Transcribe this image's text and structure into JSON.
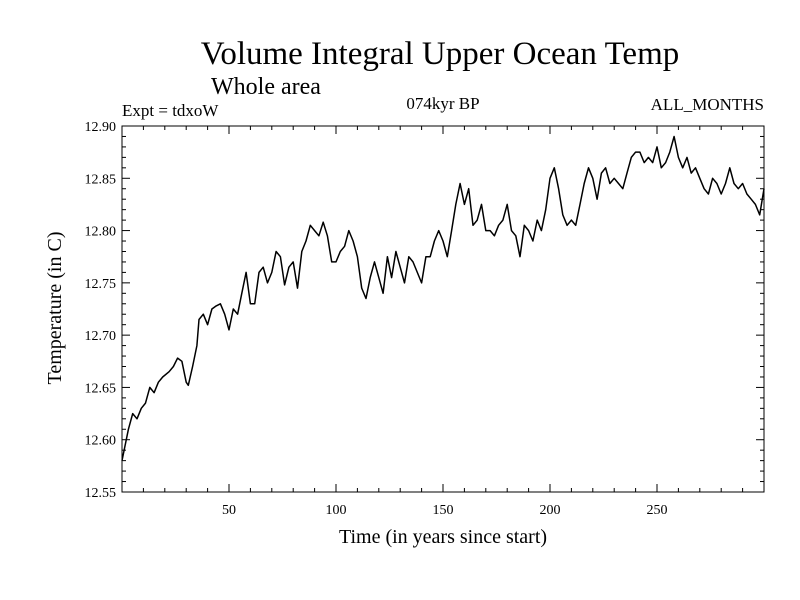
{
  "chart_data": {
    "type": "line",
    "title": "Volume Integral Upper Ocean Temp",
    "subtitle": "Whole area",
    "header_left": "Expt = tdxoW",
    "header_center": "074kyr BP",
    "header_right": "ALL_MONTHS",
    "xlabel": "Time (in years since start)",
    "ylabel": "Temperature (in C)",
    "xlim": [
      0,
      300
    ],
    "ylim": [
      12.55,
      12.9
    ],
    "x_ticks": [
      50,
      100,
      150,
      200,
      250
    ],
    "y_ticks": [
      12.55,
      12.6,
      12.65,
      12.7,
      12.75,
      12.8,
      12.85,
      12.9
    ],
    "y_tick_labels": [
      "12.55",
      "12.60",
      "12.65",
      "12.70",
      "12.75",
      "12.80",
      "12.85",
      "12.90"
    ],
    "grid": false,
    "legend": "none",
    "series": [
      {
        "x": [
          0,
          3,
          5,
          7,
          9,
          11,
          13,
          15,
          17,
          19,
          22,
          24,
          26,
          28,
          30,
          31,
          33,
          35,
          36,
          38,
          40,
          42,
          44,
          46,
          48,
          50,
          52,
          54,
          56,
          58,
          60,
          62,
          64,
          66,
          68,
          70,
          72,
          74,
          76,
          78,
          80,
          82,
          84,
          86,
          88,
          90,
          92,
          94,
          96,
          98,
          100,
          102,
          104,
          106,
          108,
          110,
          112,
          114,
          116,
          118,
          120,
          122,
          124,
          126,
          128,
          130,
          132,
          134,
          136,
          138,
          140,
          142,
          144,
          146,
          148,
          150,
          152,
          154,
          156,
          158,
          160,
          162,
          164,
          166,
          168,
          170,
          172,
          174,
          176,
          178,
          180,
          182,
          184,
          186,
          188,
          190,
          192,
          194,
          196,
          198,
          200,
          202,
          204,
          206,
          208,
          210,
          212,
          214,
          216,
          218,
          220,
          222,
          224,
          226,
          228,
          230,
          232,
          234,
          236,
          238,
          240,
          242,
          244,
          246,
          248,
          250,
          252,
          254,
          256,
          258,
          260,
          262,
          264,
          266,
          268,
          270,
          272,
          274,
          276,
          278,
          280,
          282,
          284,
          286,
          288,
          290,
          292,
          294,
          296,
          298,
          300
        ],
        "y": [
          12.58,
          12.61,
          12.625,
          12.62,
          12.63,
          12.635,
          12.65,
          12.645,
          12.655,
          12.66,
          12.665,
          12.67,
          12.678,
          12.675,
          12.655,
          12.652,
          12.67,
          12.69,
          12.715,
          12.72,
          12.71,
          12.725,
          12.728,
          12.73,
          12.72,
          12.705,
          12.725,
          12.72,
          12.74,
          12.76,
          12.73,
          12.73,
          12.76,
          12.765,
          12.75,
          12.76,
          12.78,
          12.775,
          12.748,
          12.765,
          12.77,
          12.745,
          12.78,
          12.79,
          12.805,
          12.8,
          12.795,
          12.808,
          12.795,
          12.77,
          12.77,
          12.78,
          12.785,
          12.8,
          12.79,
          12.775,
          12.745,
          12.735,
          12.755,
          12.77,
          12.755,
          12.74,
          12.775,
          12.755,
          12.78,
          12.765,
          12.75,
          12.775,
          12.77,
          12.76,
          12.75,
          12.775,
          12.775,
          12.79,
          12.8,
          12.79,
          12.775,
          12.8,
          12.825,
          12.845,
          12.825,
          12.84,
          12.805,
          12.81,
          12.825,
          12.8,
          12.8,
          12.795,
          12.805,
          12.81,
          12.825,
          12.8,
          12.795,
          12.775,
          12.805,
          12.8,
          12.79,
          12.81,
          12.8,
          12.82,
          12.85,
          12.86,
          12.84,
          12.815,
          12.805,
          12.81,
          12.805,
          12.825,
          12.845,
          12.86,
          12.85,
          12.83,
          12.855,
          12.86,
          12.845,
          12.85,
          12.845,
          12.84,
          12.855,
          12.87,
          12.875,
          12.875,
          12.865,
          12.87,
          12.865,
          12.88,
          12.86,
          12.865,
          12.875,
          12.89,
          12.87,
          12.86,
          12.87,
          12.855,
          12.86,
          12.85,
          12.84,
          12.835,
          12.85,
          12.845,
          12.835,
          12.845,
          12.86,
          12.845,
          12.84,
          12.845,
          12.835,
          12.83,
          12.825,
          12.815,
          12.84
        ]
      }
    ]
  }
}
